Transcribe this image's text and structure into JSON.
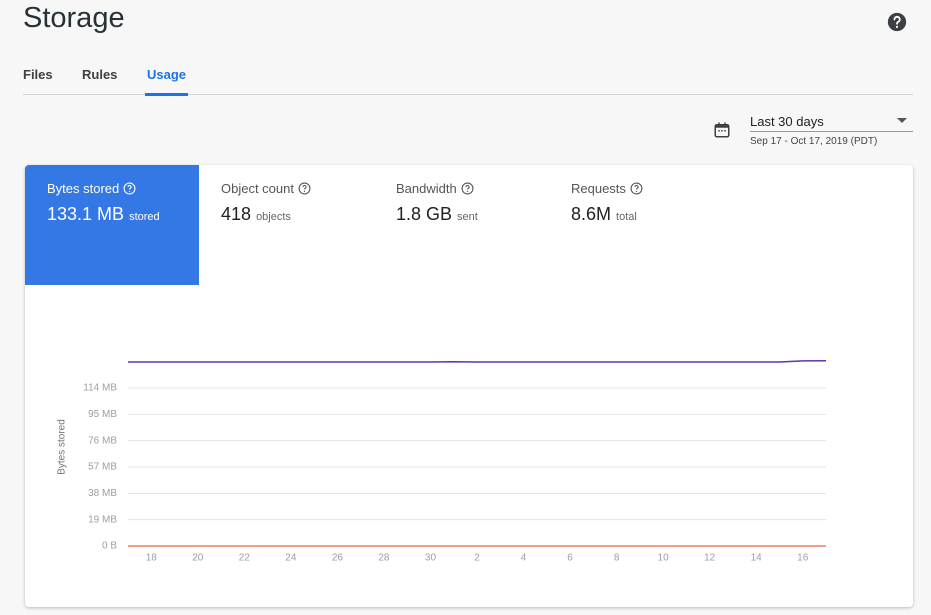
{
  "header": {
    "title": "Storage"
  },
  "tabs": [
    "Files",
    "Rules",
    "Usage"
  ],
  "date_picker": {
    "label": "Last 30 days",
    "range": "Sep 17 - Oct 17, 2019 (PDT)"
  },
  "metrics": [
    {
      "label": "Bytes stored",
      "value": "133.1 MB",
      "unit": "stored"
    },
    {
      "label": "Object count",
      "value": "418",
      "unit": "objects"
    },
    {
      "label": "Bandwidth",
      "value": "1.8 GB",
      "unit": "sent"
    },
    {
      "label": "Requests",
      "value": "8.6M",
      "unit": "total"
    }
  ],
  "chart_data": {
    "type": "line",
    "y_label": "Bytes stored",
    "categories": [
      null,
      "18",
      null,
      "20",
      null,
      "22",
      null,
      "24",
      null,
      "26",
      null,
      "28",
      null,
      "30",
      null,
      "2",
      null,
      "4",
      null,
      "6",
      null,
      "8",
      null,
      "10",
      null,
      "12",
      null,
      "14",
      null,
      "16",
      null
    ],
    "series": [
      {
        "color": "#5e35b1",
        "values": [
          132.8,
          132.8,
          132.8,
          132.8,
          132.8,
          132.8,
          132.8,
          132.8,
          132.8,
          132.8,
          132.8,
          132.8,
          132.8,
          132.8,
          133.0,
          132.8,
          132.8,
          132.8,
          132.8,
          132.8,
          132.8,
          132.8,
          132.8,
          132.8,
          132.8,
          132.8,
          132.8,
          132.8,
          132.8,
          133.6,
          133.7
        ]
      },
      {
        "color": "#e8805f",
        "values": [
          0,
          0,
          0,
          0,
          0,
          0,
          0,
          0,
          0,
          0,
          0,
          0,
          0,
          0,
          0,
          0,
          0,
          0,
          0,
          0,
          0,
          0,
          0,
          0,
          0,
          0,
          0,
          0,
          0,
          0,
          0
        ]
      }
    ],
    "ylim": [
      0,
      140
    ],
    "yticks": [
      {
        "value": 0,
        "label": "0 B"
      },
      {
        "value": 19,
        "label": "19 MB"
      },
      {
        "value": 38,
        "label": "38 MB"
      },
      {
        "value": 57,
        "label": "57 MB"
      },
      {
        "value": 76,
        "label": "76 MB"
      },
      {
        "value": 95,
        "label": "95 MB"
      },
      {
        "value": 114,
        "label": "114 MB"
      }
    ],
    "grid": true
  }
}
